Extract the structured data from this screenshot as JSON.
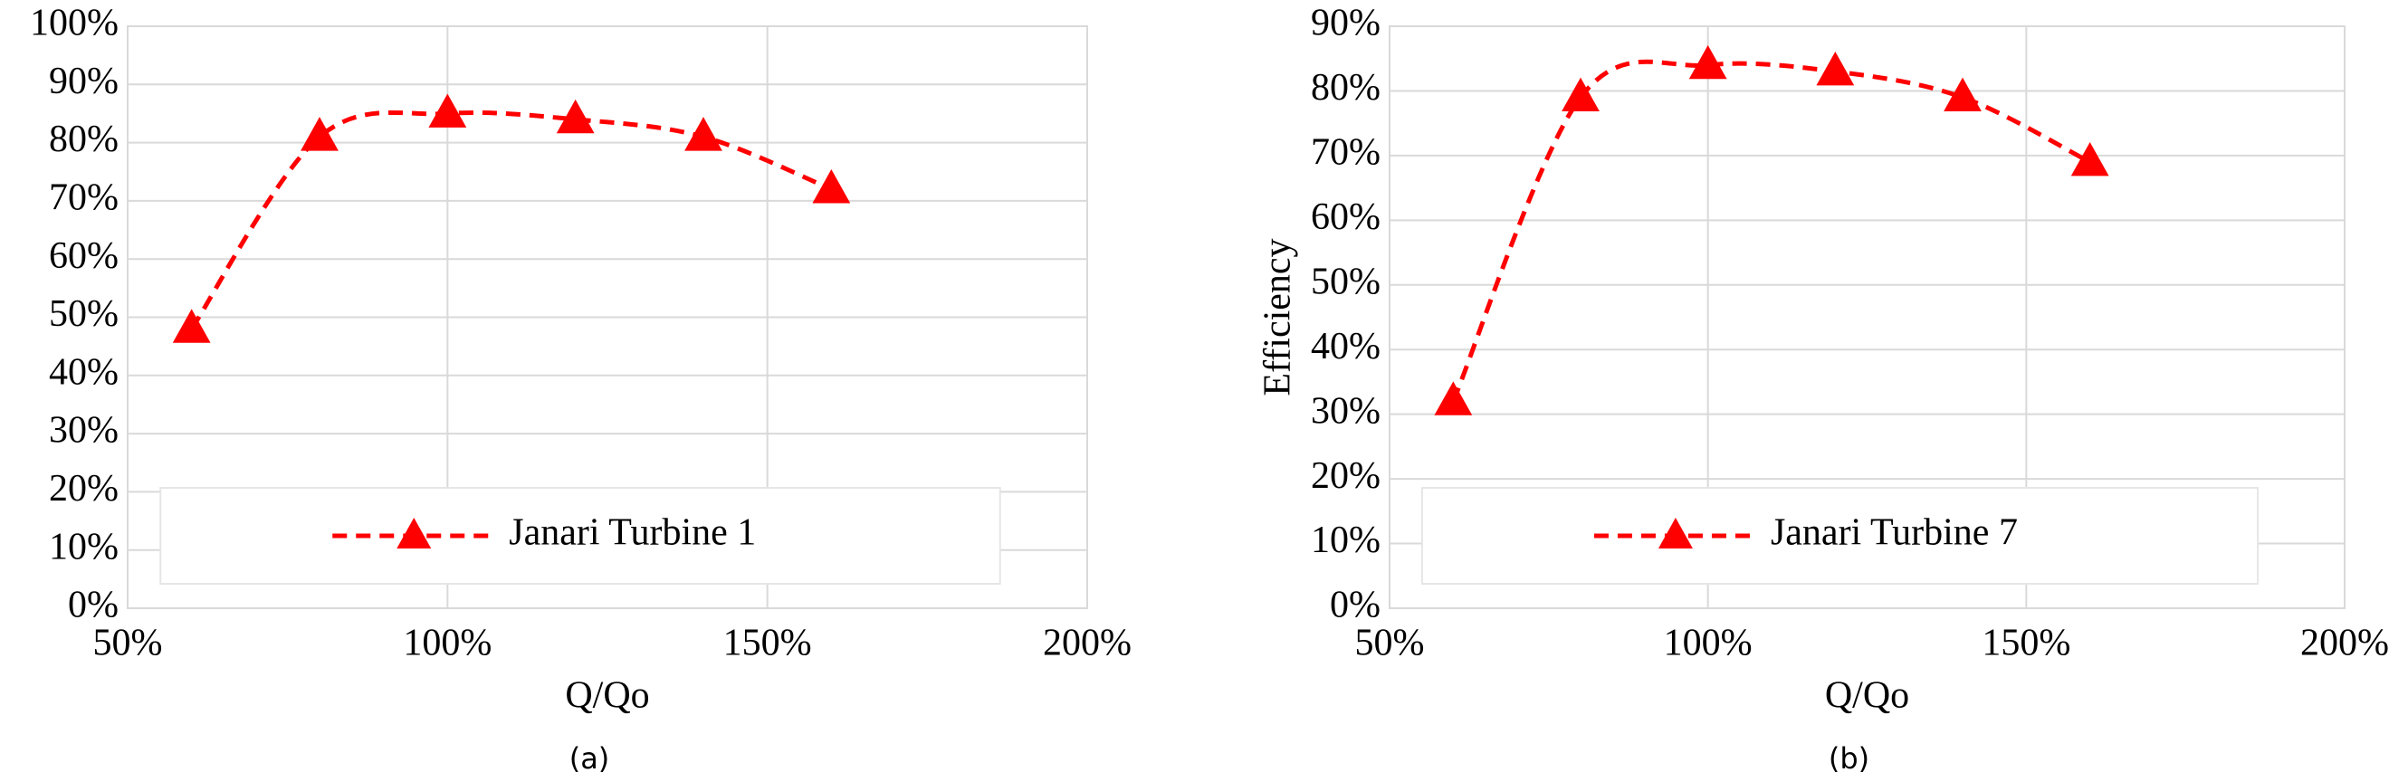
{
  "chart_data": [
    {
      "type": "line",
      "caption": "(a)",
      "xlabel": "Q/Qo",
      "x": [
        60,
        80,
        100,
        120,
        140,
        160
      ],
      "series": [
        {
          "name": "Janari Turbine 1",
          "color": "#ff0000",
          "values": [
            48,
            81,
            85,
            84,
            81,
            72
          ]
        }
      ],
      "xlim": [
        50,
        200
      ],
      "xticks": [
        {
          "value": 50,
          "label": "50%"
        },
        {
          "value": 100,
          "label": "100%"
        },
        {
          "value": 150,
          "label": "150%"
        },
        {
          "value": 200,
          "label": "200%"
        }
      ],
      "ylim": [
        0,
        100
      ],
      "yticks": [
        {
          "value": 0,
          "label": "0%"
        },
        {
          "value": 10,
          "label": "10%"
        },
        {
          "value": 20,
          "label": "20%"
        },
        {
          "value": 30,
          "label": "30%"
        },
        {
          "value": 40,
          "label": "40%"
        },
        {
          "value": 50,
          "label": "50%"
        },
        {
          "value": 60,
          "label": "60%"
        },
        {
          "value": 70,
          "label": "70%"
        },
        {
          "value": 80,
          "label": "80%"
        },
        {
          "value": 90,
          "label": "90%"
        },
        {
          "value": 100,
          "label": "100%"
        }
      ],
      "grid": true,
      "legend": "lower center"
    },
    {
      "type": "line",
      "caption": "(b)",
      "xlabel": "Q/Qo",
      "ylabel": "Efficiency",
      "x": [
        60,
        80,
        100,
        120,
        140,
        160
      ],
      "series": [
        {
          "name": "Janari Turbine 7",
          "color": "#ff0000",
          "values": [
            32,
            79,
            84,
            83,
            79,
            69
          ]
        }
      ],
      "xlim": [
        50,
        200
      ],
      "xticks": [
        {
          "value": 50,
          "label": "50%"
        },
        {
          "value": 100,
          "label": "100%"
        },
        {
          "value": 150,
          "label": "150%"
        },
        {
          "value": 200,
          "label": "200%"
        }
      ],
      "ylim": [
        0,
        90
      ],
      "yticks": [
        {
          "value": 0,
          "label": "0%"
        },
        {
          "value": 10,
          "label": "10%"
        },
        {
          "value": 20,
          "label": "20%"
        },
        {
          "value": 30,
          "label": "30%"
        },
        {
          "value": 40,
          "label": "40%"
        },
        {
          "value": 50,
          "label": "50%"
        },
        {
          "value": 60,
          "label": "60%"
        },
        {
          "value": 70,
          "label": "70%"
        },
        {
          "value": 80,
          "label": "80%"
        },
        {
          "value": 90,
          "label": "90%"
        }
      ],
      "grid": true,
      "legend": "lower center"
    }
  ]
}
